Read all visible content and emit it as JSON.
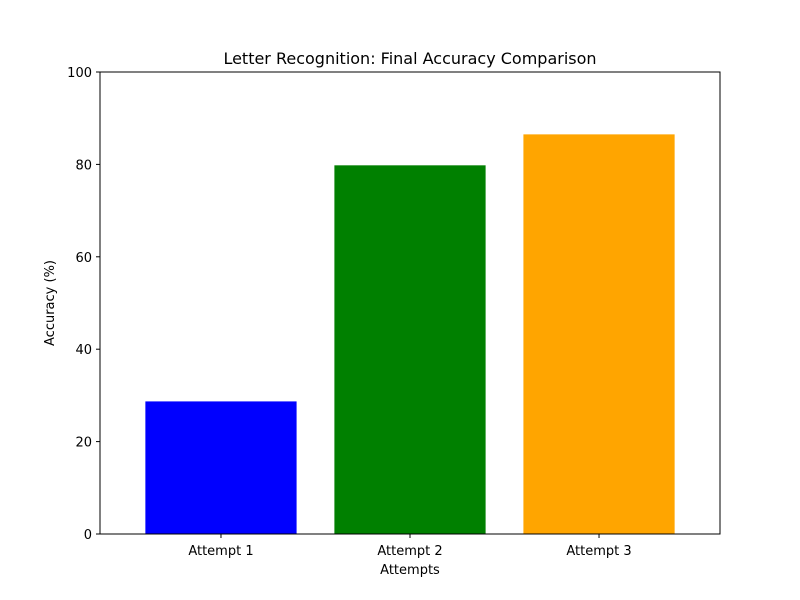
{
  "chart_data": {
    "type": "bar",
    "title": "Letter Recognition: Final Accuracy Comparison",
    "xlabel": "Attempts",
    "ylabel": "Accuracy (%)",
    "categories": [
      "Attempt 1",
      "Attempt 2",
      "Attempt 3"
    ],
    "values": [
      28.7,
      79.8,
      86.5
    ],
    "colors": [
      "#0000ff",
      "#008000",
      "#ffa500"
    ],
    "ylim": [
      0,
      100
    ],
    "yticks": [
      0,
      20,
      40,
      60,
      80,
      100
    ],
    "grid": false,
    "legend": "none"
  }
}
